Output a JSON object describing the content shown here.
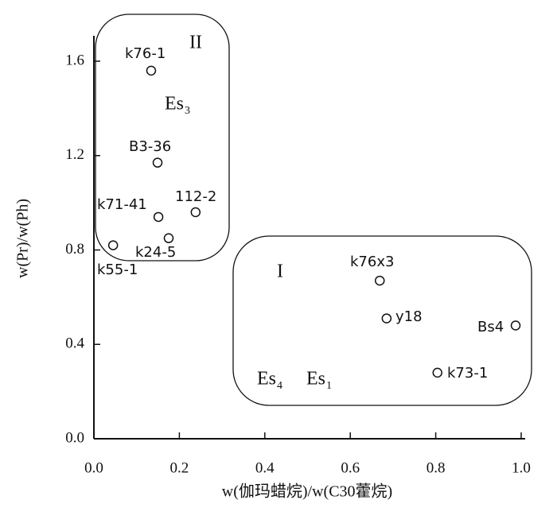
{
  "chart_data": {
    "type": "scatter",
    "x_label": "w(伽玛蜡烷)/w(C30藿烷)",
    "y_label": "w(Pr)/w(Ph)",
    "xlim": [
      0,
      1.0
    ],
    "ylim": [
      0,
      1.7
    ],
    "xticks": [
      {
        "value": 0,
        "label": "0.0"
      },
      {
        "value": 0.2,
        "label": "0.2"
      },
      {
        "value": 0.4,
        "label": "0.4"
      },
      {
        "value": 0.6,
        "label": "0.6"
      },
      {
        "value": 0.8,
        "label": "0.8"
      },
      {
        "value": 1.0,
        "label": "1.0"
      }
    ],
    "yticks": [
      {
        "value": 0,
        "label": "0.0"
      },
      {
        "value": 0.4,
        "label": "0.4"
      },
      {
        "value": 0.8,
        "label": "0.8"
      },
      {
        "value": 1.2,
        "label": "1.2"
      },
      {
        "value": 1.6,
        "label": "1.6"
      }
    ],
    "x": [
      0.134,
      0.149,
      0.151,
      0.238,
      0.175,
      0.045,
      0.669,
      0.685,
      0.987,
      0.804
    ],
    "values": [
      1.56,
      1.17,
      0.94,
      0.96,
      0.85,
      0.82,
      0.67,
      0.51,
      0.48,
      0.28
    ],
    "point_labels": [
      "k76-1",
      "B3-36",
      "k71-41",
      "112-2",
      "k24-5",
      "k55-1",
      "k76x3",
      "y18",
      "Bs4",
      "k73-1"
    ],
    "color": "#111111",
    "annotations": [
      {
        "text": "II"
      },
      {
        "text": "Es",
        "sub": "3"
      },
      {
        "text": "I"
      },
      {
        "text": "Es",
        "sub": "4"
      },
      {
        "text": "Es",
        "sub": "1"
      }
    ]
  }
}
